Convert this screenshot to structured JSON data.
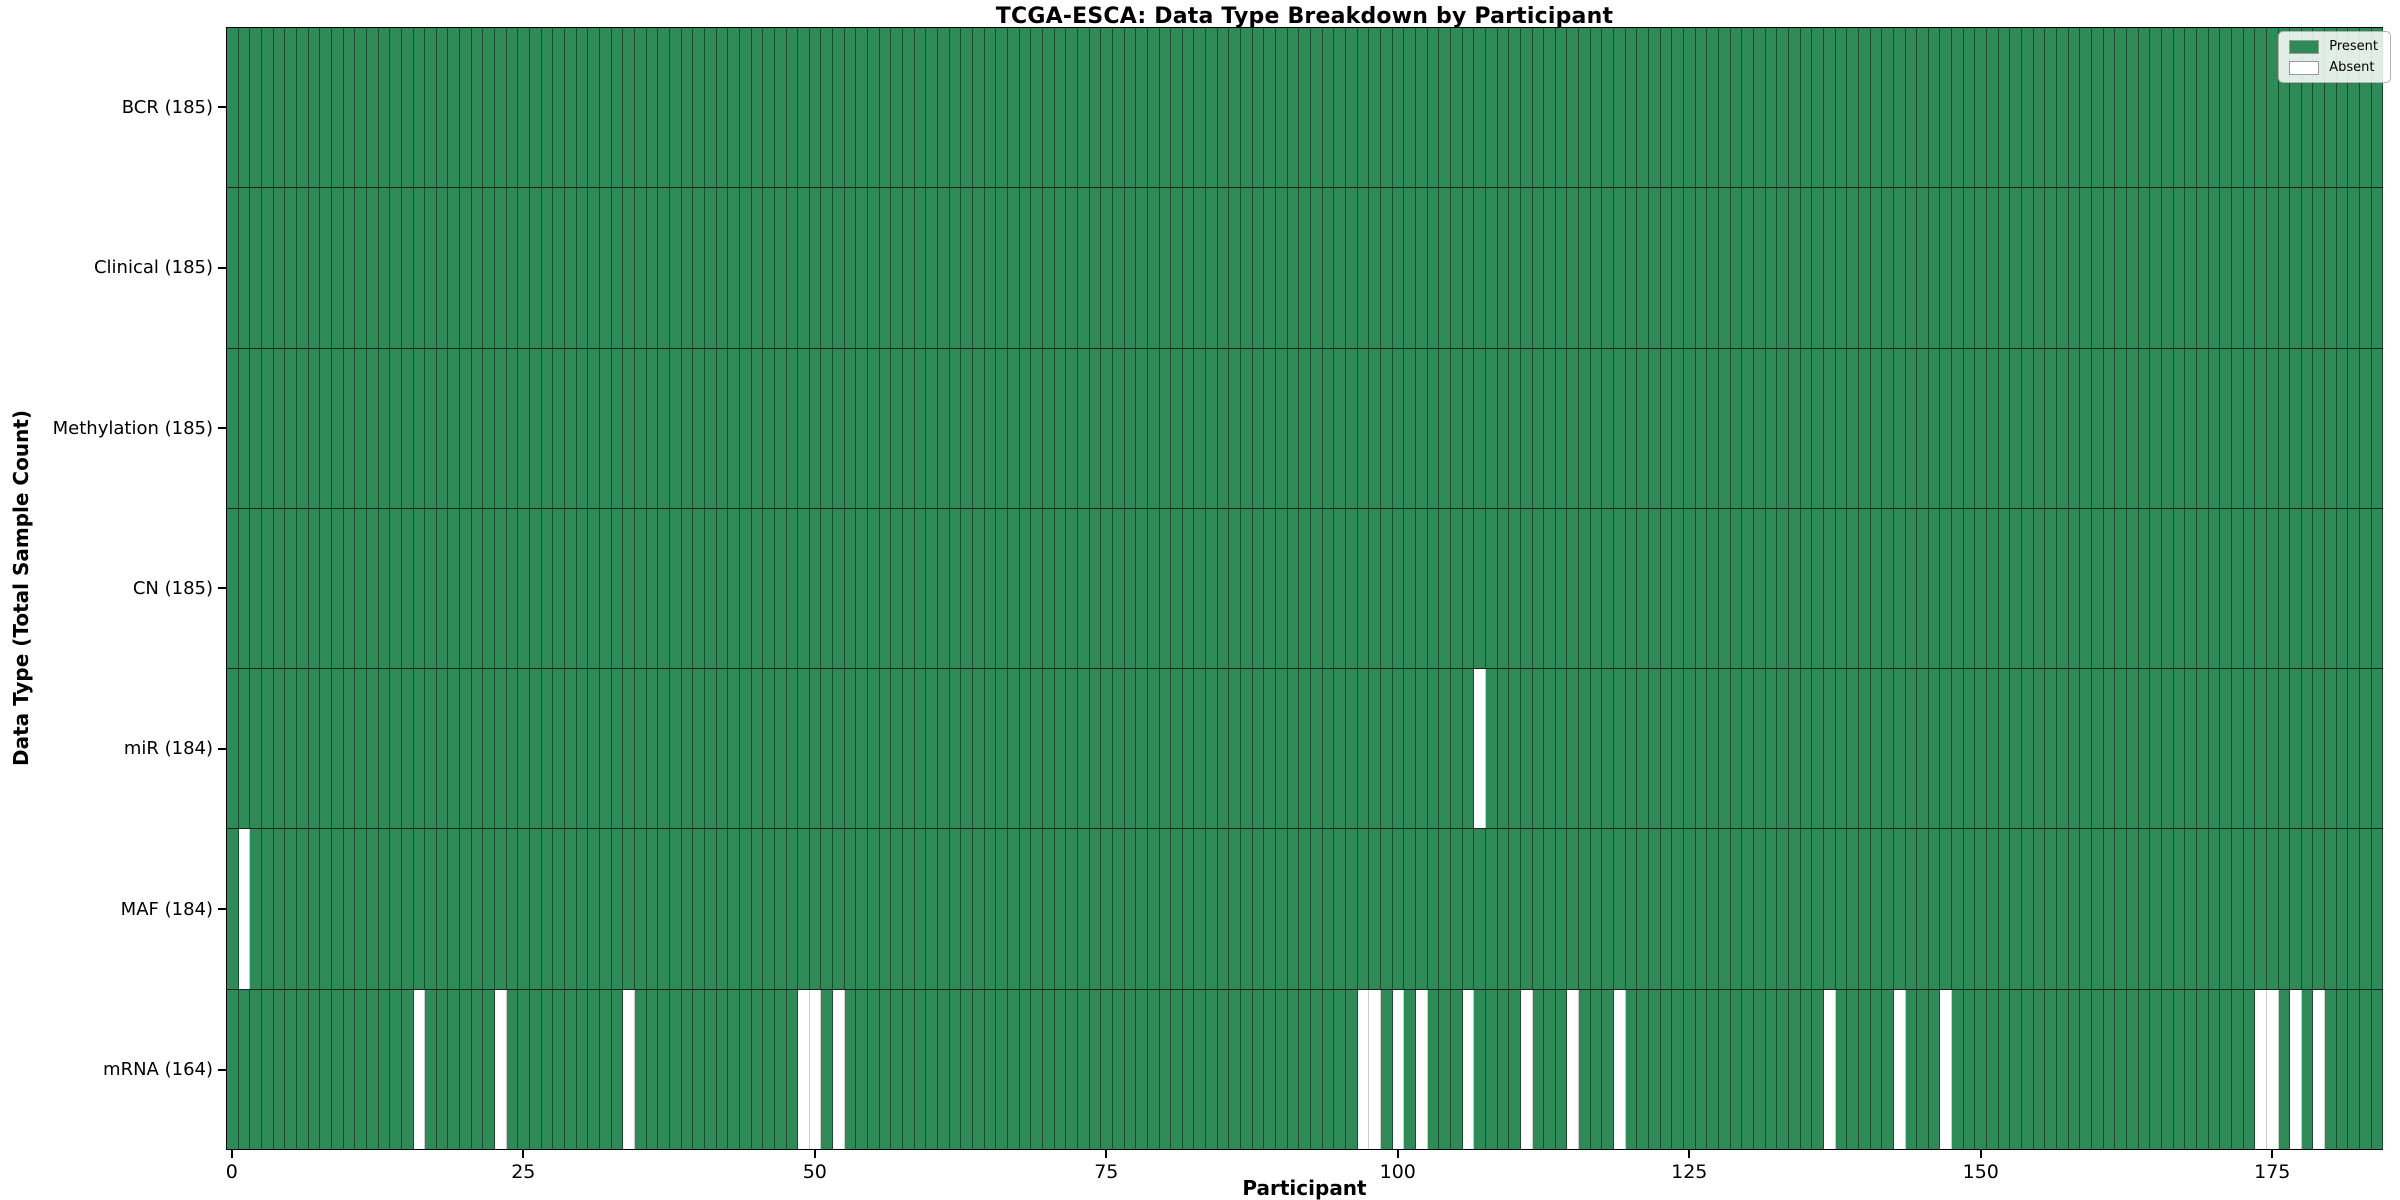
{
  "title": "TCGA-ESCA: Data Type Breakdown by Participant",
  "xlabel": "Participant",
  "ylabel": "Data Type (Total Sample Count)",
  "legend": {
    "present_label": "Present",
    "absent_label": "Absent"
  },
  "colors": {
    "present": "#2e8b57",
    "absent": "#ffffff",
    "present_edge": "rgba(10,25,18,0.55)",
    "absent_edge": "#cccccc",
    "spine": "#000000"
  },
  "chart_data": {
    "type": "heatmap",
    "title": "TCGA-ESCA: Data Type Breakdown by Participant",
    "xlabel": "Participant",
    "ylabel": "Data Type (Total Sample Count)",
    "legend_entries": [
      "Present",
      "Absent"
    ],
    "legend_position": "upper right",
    "n_participants": 185,
    "xlim": [
      -0.5,
      184.5
    ],
    "x_ticks": [
      0,
      25,
      50,
      75,
      100,
      125,
      150,
      175
    ],
    "value_encoding": {
      "present": 1,
      "absent": 0
    },
    "rows": [
      {
        "label": "BCR (185)",
        "data_type": "BCR",
        "total_sample_count": 185,
        "absent_participants": []
      },
      {
        "label": "Clinical (185)",
        "data_type": "Clinical",
        "total_sample_count": 185,
        "absent_participants": []
      },
      {
        "label": "Methylation (185)",
        "data_type": "Methylation",
        "total_sample_count": 185,
        "absent_participants": []
      },
      {
        "label": "CN (185)",
        "data_type": "CN",
        "total_sample_count": 185,
        "absent_participants": []
      },
      {
        "label": "miR (184)",
        "data_type": "miR",
        "total_sample_count": 184,
        "absent_participants": [
          107
        ]
      },
      {
        "label": "MAF (184)",
        "data_type": "MAF",
        "total_sample_count": 184,
        "absent_participants": [
          1
        ]
      },
      {
        "label": "mRNA (164)",
        "data_type": "mRNA",
        "total_sample_count": 164,
        "absent_participants": [
          16,
          23,
          34,
          49,
          50,
          52,
          97,
          98,
          100,
          102,
          106,
          111,
          115,
          119,
          137,
          143,
          147,
          174,
          175,
          177,
          179
        ]
      }
    ]
  }
}
